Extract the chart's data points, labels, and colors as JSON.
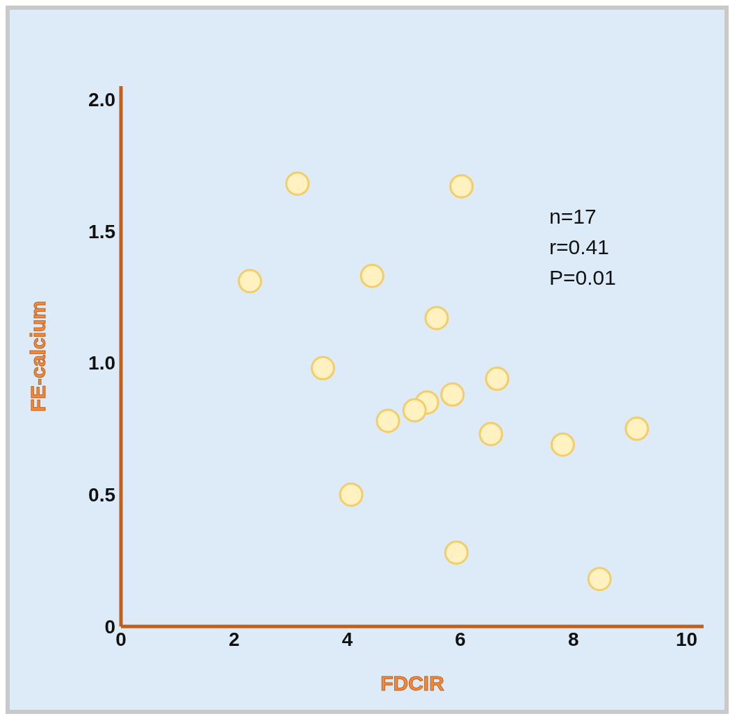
{
  "chart_data": {
    "type": "scatter",
    "xlabel": "FDCIR",
    "ylabel": "FE-calcium",
    "x": [
      3.12,
      6.02,
      2.28,
      4.44,
      5.58,
      3.57,
      6.65,
      5.86,
      5.41,
      5.19,
      4.72,
      6.54,
      7.81,
      9.12,
      4.07,
      5.93,
      8.46
    ],
    "values": [
      1.68,
      1.67,
      1.31,
      1.33,
      1.17,
      0.98,
      0.94,
      0.88,
      0.85,
      0.82,
      0.78,
      0.73,
      0.69,
      0.75,
      0.5,
      0.28,
      0.18
    ],
    "color": "#fff1c0",
    "marker": "circle",
    "grid": false,
    "legend": false,
    "xlim": [
      0,
      10.3
    ],
    "xticks": [
      0,
      2,
      4,
      6,
      8,
      10
    ],
    "ylim": [
      0,
      2.05
    ],
    "yticks": [
      {
        "value": 0,
        "label": "0"
      },
      {
        "value": 0.5,
        "label": "0.5"
      },
      {
        "value": 1,
        "label": "1.0"
      },
      {
        "value": 1.5,
        "label": "1.5"
      },
      {
        "value": 2,
        "label": "2.0"
      }
    ],
    "annotations": [
      "n=17",
      "r=0.41",
      "P=0.01"
    ]
  }
}
